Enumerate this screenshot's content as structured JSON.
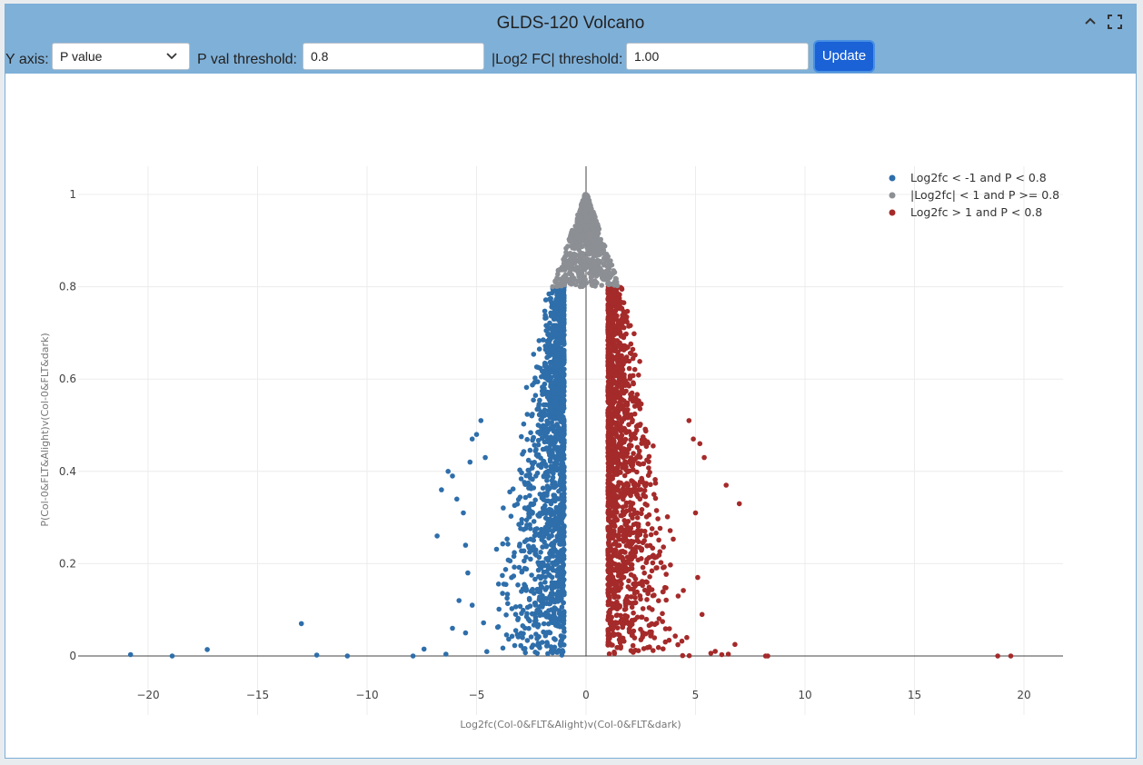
{
  "window": {
    "title": "GLDS-120 Volcano"
  },
  "controls": {
    "y_axis_label": "Y axis:",
    "y_axis_value": "P value",
    "pval_label": "P val threshold:",
    "pval_value": "0.8",
    "log2fc_label": "|Log2 FC| threshold:",
    "log2fc_value": "1.00",
    "update_label": "Update"
  },
  "icons": {
    "collapse": "chevron-up-icon",
    "fullscreen": "fullscreen-icon",
    "dropdown": "chevron-down-icon"
  },
  "colors": {
    "down": "#2e6eaa",
    "ns": "#8c8f94",
    "up": "#a52a2a"
  },
  "chart_data": {
    "type": "scatter",
    "title": "",
    "xlabel": "Log2fc(Col-0&FLT&Alight)v(Col-0&FLT&dark)",
    "ylabel": "P(Col-0&FLT&Alight)v(Col-0&FLT&dark)",
    "xlim": [
      -23,
      22
    ],
    "ylim": [
      -0.07,
      1.06
    ],
    "xticks": [
      -20,
      -15,
      -10,
      -5,
      0,
      5,
      10,
      15,
      20
    ],
    "xtick_labels": [
      "−20",
      "−15",
      "−10",
      "−5",
      "0",
      "5",
      "10",
      "15",
      "20"
    ],
    "yticks": [
      0,
      0.2,
      0.4,
      0.6,
      0.8,
      1
    ],
    "ytick_labels": [
      "0",
      "0.2",
      "0.4",
      "0.6",
      "0.8",
      "1"
    ],
    "grid": true,
    "legend_position": "top-right",
    "series": [
      {
        "name": "Log2fc < -1 and P < 0.8",
        "color": "#2e6eaa",
        "points": [
          [
            -20.8,
            0.003
          ],
          [
            -18.9,
            0.0
          ],
          [
            -17.3,
            0.014
          ],
          [
            -13.0,
            0.07
          ],
          [
            -12.3,
            0.002
          ],
          [
            -10.9,
            0.0
          ],
          [
            -7.9,
            0.0
          ],
          [
            -7.4,
            0.015
          ],
          [
            -6.8,
            0.26
          ],
          [
            -6.6,
            0.36
          ],
          [
            -6.3,
            0.4
          ],
          [
            -6.1,
            0.39
          ],
          [
            -5.9,
            0.34
          ],
          [
            -5.6,
            0.31
          ],
          [
            -5.5,
            0.24
          ],
          [
            -5.3,
            0.42
          ],
          [
            -5.2,
            0.47
          ],
          [
            -5.0,
            0.48
          ],
          [
            -4.8,
            0.51
          ],
          [
            -4.6,
            0.43
          ],
          [
            -6.4,
            0.004
          ],
          [
            -6.1,
            0.06
          ],
          [
            -5.8,
            0.12
          ],
          [
            -5.5,
            0.05
          ],
          [
            -5.4,
            0.18
          ],
          [
            -5.2,
            0.11
          ]
        ]
      },
      {
        "name": "|Log2fc| < 1 and P >= 0.8",
        "color": "#8c8f94",
        "points": [
          [
            0,
            1.0
          ],
          [
            -0.3,
            0.95
          ],
          [
            0.3,
            0.94
          ],
          [
            -0.6,
            0.9
          ],
          [
            0.6,
            0.9
          ],
          [
            -1,
            0.82
          ],
          [
            1,
            0.82
          ],
          [
            -1.4,
            0.81
          ],
          [
            1.4,
            0.81
          ],
          [
            -0.8,
            0.85
          ],
          [
            0.8,
            0.85
          ]
        ]
      },
      {
        "name": "Log2fc > 1 and P < 0.8",
        "color": "#a52a2a",
        "points": [
          [
            19.4,
            0.0
          ],
          [
            18.8,
            0.0
          ],
          [
            8.3,
            0.0
          ],
          [
            8.2,
            0.0
          ],
          [
            7.0,
            0.33
          ],
          [
            6.4,
            0.37
          ],
          [
            6.8,
            0.025
          ],
          [
            5.7,
            0.006
          ],
          [
            5.9,
            0.01
          ],
          [
            5.4,
            0.43
          ],
          [
            5.2,
            0.46
          ],
          [
            5.0,
            0.31
          ],
          [
            4.9,
            0.47
          ],
          [
            4.7,
            0.51
          ],
          [
            5.1,
            0.17
          ],
          [
            5.3,
            0.09
          ],
          [
            4.6,
            0.04
          ],
          [
            6.2,
            0.003
          ],
          [
            6.5,
            0.004
          ]
        ]
      }
    ],
    "fan_down": {
      "x_range": [
        -5,
        -1
      ],
      "p_max": 0.8,
      "count": 1450
    },
    "fan_up": {
      "x_range": [
        1,
        5
      ],
      "p_max": 0.8,
      "count": 1450
    },
    "ns_cloud": {
      "x_range": [
        -1.5,
        1.5
      ],
      "p_range": [
        0.8,
        1.0
      ],
      "count": 700
    }
  }
}
